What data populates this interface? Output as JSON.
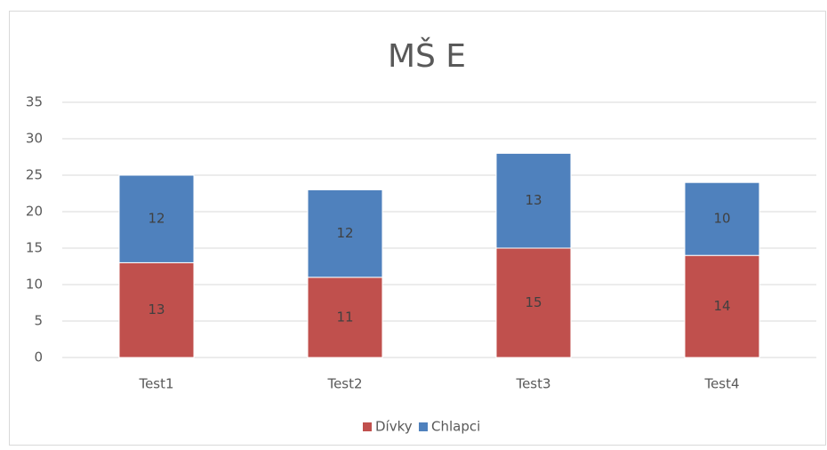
{
  "chart_data": {
    "type": "stacked_bar",
    "title": "MŠ E",
    "categories": [
      "Test1",
      "Test2",
      "Test3",
      "Test4"
    ],
    "series": [
      {
        "name": "Dívky",
        "color": "#c0504d",
        "values": [
          13,
          11,
          15,
          14
        ]
      },
      {
        "name": "Chlapci",
        "color": "#4f81bd",
        "values": [
          12,
          12,
          13,
          10
        ]
      }
    ],
    "ylim": [
      0,
      35
    ],
    "yticks": [
      0,
      5,
      10,
      15,
      20,
      25,
      30,
      35
    ],
    "grid": true,
    "legend": "bottom"
  }
}
